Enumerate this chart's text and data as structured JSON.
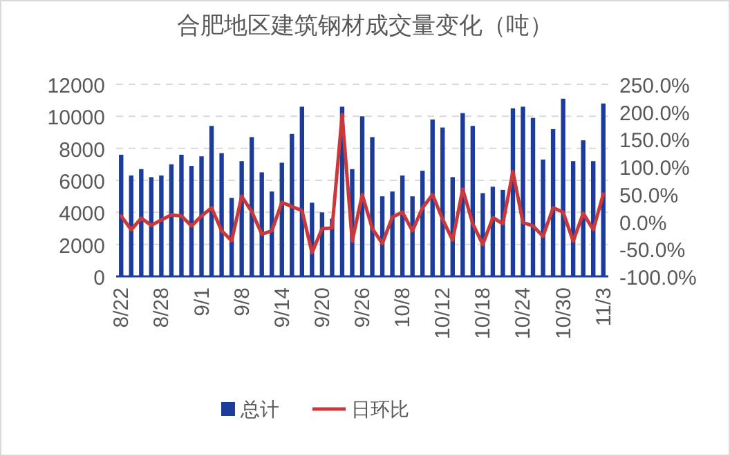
{
  "chart_data": {
    "type": "bar",
    "title": "合肥地区建筑钢材成交量变化（吨）",
    "categories": [
      "8/22",
      null,
      null,
      null,
      "8/28",
      null,
      null,
      null,
      "9/1",
      null,
      null,
      null,
      "9/8",
      null,
      null,
      null,
      "9/14",
      null,
      null,
      null,
      "9/20",
      null,
      null,
      null,
      "9/26",
      null,
      null,
      null,
      "10/8",
      null,
      null,
      null,
      "10/12",
      null,
      null,
      null,
      "10/18",
      null,
      null,
      null,
      "10/24",
      null,
      null,
      null,
      "10/30",
      null,
      null,
      null,
      "11/3"
    ],
    "series": [
      {
        "name": "总计",
        "color": "#1c3c9c",
        "values": [
          7600,
          6300,
          6700,
          6200,
          6300,
          7000,
          7600,
          6900,
          7500,
          9400,
          7700,
          4900,
          7200,
          8700,
          6500,
          5300,
          7100,
          8900,
          10600,
          4600,
          4000,
          3600,
          10600,
          6700,
          10000,
          8700,
          5000,
          5300,
          6300,
          5000,
          6600,
          9800,
          9300,
          6200,
          10200,
          9400,
          5200,
          5600,
          5400,
          10500,
          10600,
          9900,
          7300,
          9200,
          11100,
          7200,
          8500,
          7200,
          10800
        ]
      },
      {
        "name": "日环比",
        "type": "line",
        "axis": "y2",
        "color": "#c9393b",
        "values": [
          10,
          -15,
          6,
          -7,
          3,
          12,
          10,
          -8,
          10,
          25,
          -17,
          -35,
          46,
          18,
          -23,
          -17,
          35,
          27,
          20,
          -57,
          -13,
          -12,
          195,
          -36,
          49,
          -13,
          -40,
          8,
          17,
          -17,
          25,
          49,
          4,
          -34,
          59,
          -4,
          -42,
          7,
          -4,
          91,
          -2,
          -8,
          -27,
          25,
          17,
          -36,
          15,
          -15,
          50
        ]
      }
    ],
    "ylim": [
      0,
      12000
    ],
    "yticks": [
      0,
      2000,
      4000,
      6000,
      8000,
      10000,
      12000
    ],
    "y2lim": [
      -100,
      250
    ],
    "y2ticks": [
      {
        "value": -100,
        "label": "-100.0%"
      },
      {
        "value": -50,
        "label": "-50.0%"
      },
      {
        "value": 0,
        "label": "0.0%"
      },
      {
        "value": 50,
        "label": "50.0%"
      },
      {
        "value": 100,
        "label": "100.0%"
      },
      {
        "value": 150,
        "label": "150.0%"
      },
      {
        "value": 200,
        "label": "200.0%"
      },
      {
        "value": 250,
        "label": "250.0%"
      }
    ],
    "grid": "y",
    "legend": "bottom"
  }
}
